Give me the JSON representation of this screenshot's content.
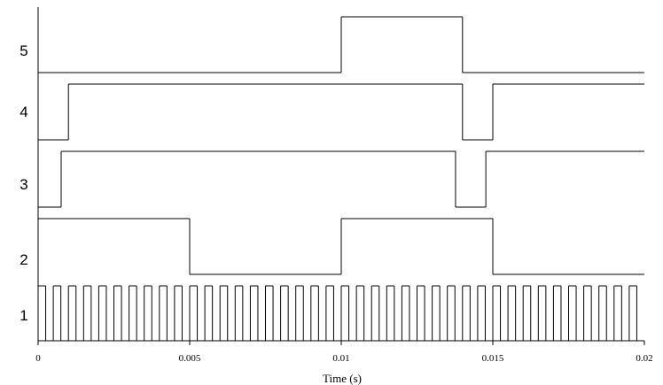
{
  "chart_data": {
    "type": "step",
    "xlabel": "Time (s)",
    "xlim": [
      0,
      0.02
    ],
    "xticks": [
      0,
      0.005,
      0.01,
      0.015,
      0.02
    ],
    "ylim": [
      0,
      1
    ],
    "color": "#000000",
    "series": [
      {
        "name": "1",
        "x": [
          0,
          0.00025,
          0.0005,
          0.00075,
          0.001,
          0.00125,
          0.0015,
          0.00175,
          0.002,
          0.00225,
          0.0025,
          0.00275,
          0.003,
          0.00325,
          0.0035,
          0.00375,
          0.004,
          0.00425,
          0.0045,
          0.00475,
          0.005,
          0.00525,
          0.0055,
          0.00575,
          0.006,
          0.00625,
          0.0065,
          0.00675,
          0.007,
          0.00725,
          0.0075,
          0.00775,
          0.008,
          0.00825,
          0.0085,
          0.00875,
          0.009,
          0.00925,
          0.0095,
          0.00975,
          0.01,
          0.01025,
          0.0105,
          0.01075,
          0.011,
          0.01125,
          0.0115,
          0.01175,
          0.012,
          0.01225,
          0.0125,
          0.01275,
          0.013,
          0.01325,
          0.0135,
          0.01375,
          0.014,
          0.01425,
          0.0145,
          0.01475,
          0.015,
          0.01525,
          0.0155,
          0.01575,
          0.016,
          0.01625,
          0.0165,
          0.01675,
          0.017,
          0.01725,
          0.0175,
          0.01775,
          0.018,
          0.01825,
          0.0185,
          0.01875,
          0.019,
          0.01925,
          0.0195,
          0.01975
        ],
        "values": [
          1,
          0,
          1,
          0,
          1,
          0,
          1,
          0,
          1,
          0,
          1,
          0,
          1,
          0,
          1,
          0,
          1,
          0,
          1,
          0,
          1,
          0,
          1,
          0,
          1,
          0,
          1,
          0,
          1,
          0,
          1,
          0,
          1,
          0,
          1,
          0,
          1,
          0,
          1,
          0,
          1,
          0,
          1,
          0,
          1,
          0,
          1,
          0,
          1,
          0,
          1,
          0,
          1,
          0,
          1,
          0,
          1,
          0,
          1,
          0,
          1,
          0,
          1,
          0,
          1,
          0,
          1,
          0,
          1,
          0,
          1,
          0,
          1,
          0,
          1,
          0,
          1,
          0,
          1,
          0
        ]
      },
      {
        "name": "2",
        "x": [
          0,
          0.005,
          0.01,
          0.015
        ],
        "values": [
          1,
          0,
          1,
          0
        ]
      },
      {
        "name": "3",
        "x": [
          0,
          0.00076,
          0.01377,
          0.01477
        ],
        "values": [
          0,
          1,
          0,
          1
        ]
      },
      {
        "name": "4",
        "x": [
          0,
          0.001,
          0.014,
          0.015
        ],
        "values": [
          0,
          1,
          0,
          1
        ]
      },
      {
        "name": "5",
        "x": [
          0,
          0.01,
          0.014
        ],
        "values": [
          0,
          1,
          0
        ]
      }
    ]
  }
}
